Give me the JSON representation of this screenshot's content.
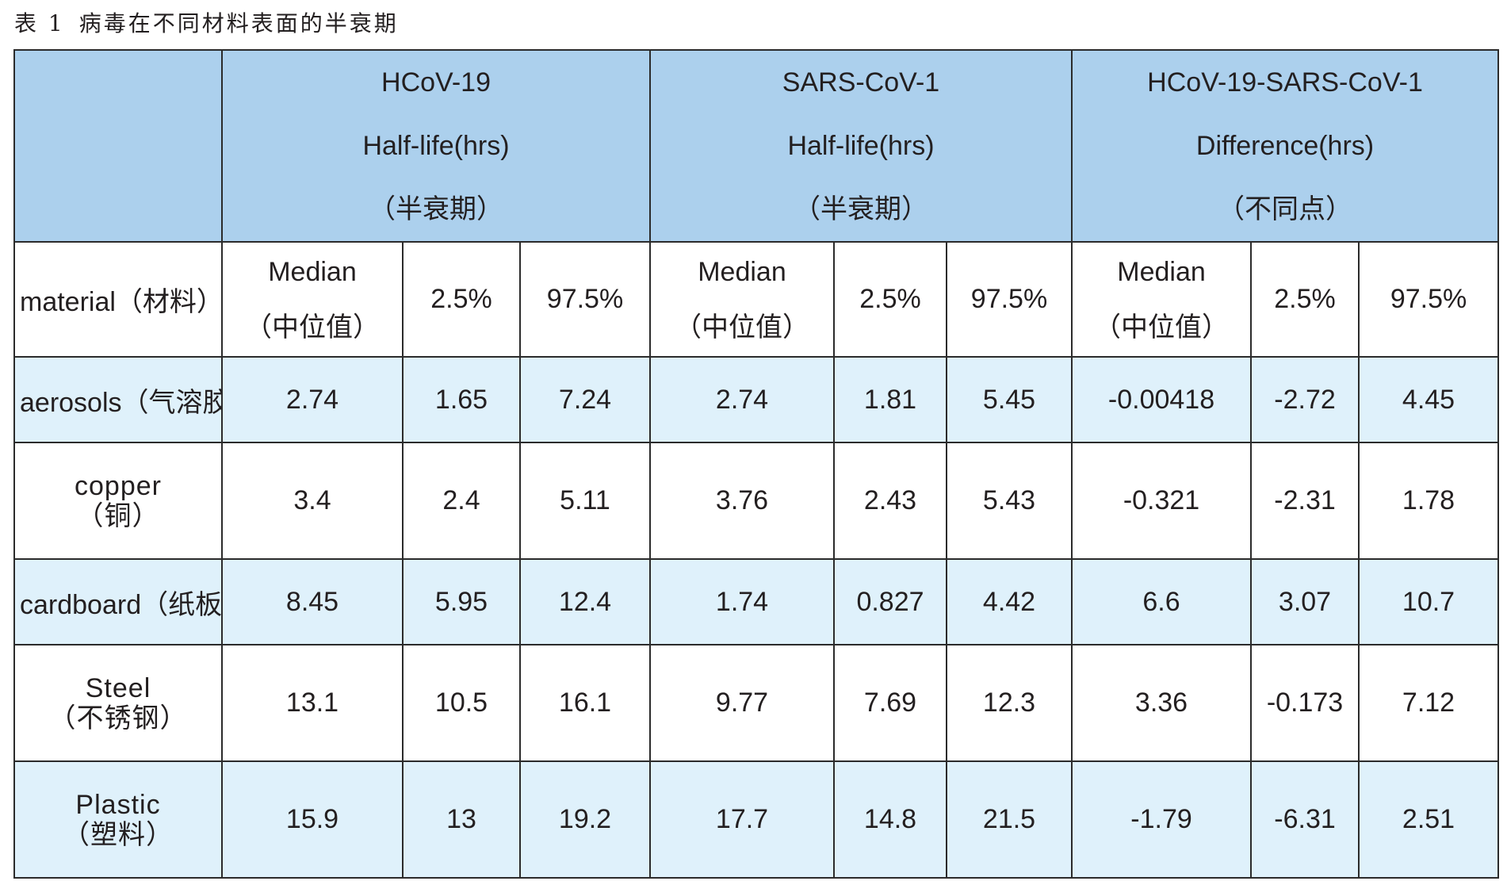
{
  "caption": {
    "label": "表 1",
    "title": "病毒在不同材料表面的半衰期"
  },
  "table": {
    "groups": [
      {
        "line1": "HCoV-19",
        "line2": "Half-life(hrs)",
        "line3": "（半衰期）"
      },
      {
        "line1": "SARS-CoV-1",
        "line2": "Half-life(hrs)",
        "line3": "（半衰期）"
      },
      {
        "line1": "HCoV-19-SARS-CoV-1",
        "line2": "Difference(hrs)",
        "line3": "（不同点）"
      }
    ],
    "material_header": "material（材料）",
    "stat_headers": {
      "median_line1": "Median",
      "median_line2": "（中位值）",
      "low": "2.5%",
      "high": "97.5%"
    },
    "rows": [
      {
        "mat1": "aerosols（气溶胶）",
        "mat2": "",
        "v": [
          "2.74",
          "1.65",
          "7.24",
          "2.74",
          "1.81",
          "5.45",
          "-0.00418",
          "-2.72",
          "4.45"
        ]
      },
      {
        "mat1": "copper",
        "mat2": "（铜）",
        "v": [
          "3.4",
          "2.4",
          "5.11",
          "3.76",
          "2.43",
          "5.43",
          "-0.321",
          "-2.31",
          "1.78"
        ]
      },
      {
        "mat1": "cardboard（纸板）",
        "mat2": "",
        "v": [
          "8.45",
          "5.95",
          "12.4",
          "1.74",
          "0.827",
          "4.42",
          "6.6",
          "3.07",
          "10.7"
        ]
      },
      {
        "mat1": "Steel",
        "mat2": "（不锈钢）",
        "v": [
          "13.1",
          "10.5",
          "16.1",
          "9.77",
          "7.69",
          "12.3",
          "3.36",
          "-0.173",
          "7.12"
        ]
      },
      {
        "mat1": "Plastic",
        "mat2": "（塑料）",
        "v": [
          "15.9",
          "13",
          "19.2",
          "17.7",
          "14.8",
          "21.5",
          "-1.79",
          "-6.31",
          "2.51"
        ]
      }
    ]
  },
  "colors": {
    "header_bg": "#acd0ed",
    "stripe_bg": "#dff1fb",
    "border": "#2b2b2b"
  }
}
